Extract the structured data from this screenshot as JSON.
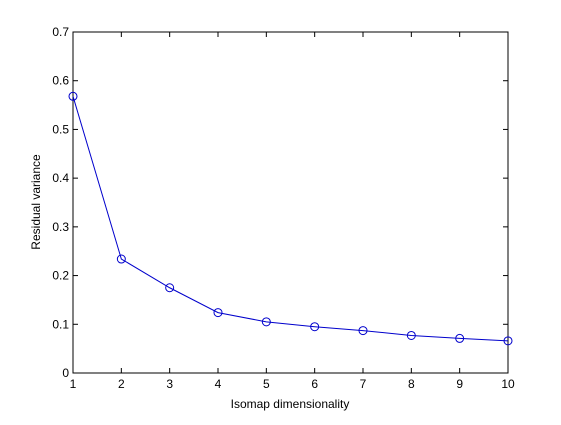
{
  "chart_data": {
    "type": "line",
    "title": "",
    "xlabel": "Isomap dimensionality",
    "ylabel": "Residual variance",
    "xlim": [
      1,
      10
    ],
    "ylim": [
      0,
      0.7
    ],
    "grid": false,
    "legend": "none",
    "x_ticks": [
      1,
      2,
      3,
      4,
      5,
      6,
      7,
      8,
      9,
      10
    ],
    "y_ticks": [
      0,
      0.1,
      0.2,
      0.3,
      0.4,
      0.5,
      0.6,
      0.7
    ],
    "x_tick_labels": [
      "1",
      "2",
      "3",
      "4",
      "5",
      "6",
      "7",
      "8",
      "9",
      "10"
    ],
    "y_tick_labels": [
      "0",
      "0.1",
      "0.2",
      "0.3",
      "0.4",
      "0.5",
      "0.6",
      "0.7"
    ],
    "series": [
      {
        "color": "#0000cc",
        "marker": "circle",
        "x": [
          1,
          2,
          3,
          4,
          5,
          6,
          7,
          8,
          9,
          10
        ],
        "y": [
          0.568,
          0.234,
          0.175,
          0.124,
          0.105,
          0.095,
          0.087,
          0.077,
          0.071,
          0.066
        ]
      }
    ]
  }
}
